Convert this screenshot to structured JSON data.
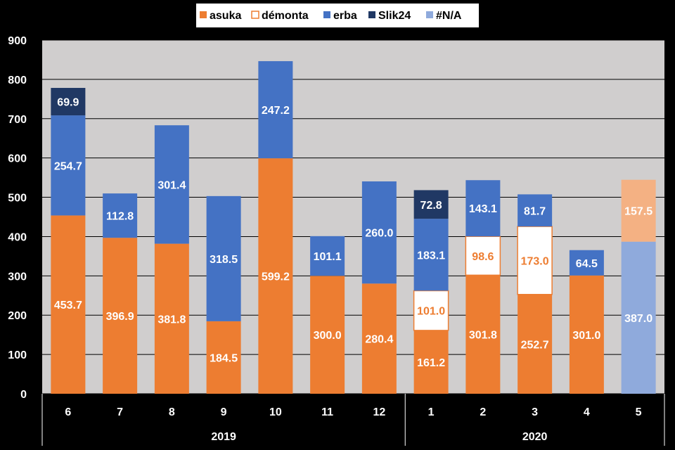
{
  "chart_data": {
    "type": "bar",
    "stacked": true,
    "title": "",
    "xlabel": "",
    "ylabel": "",
    "ylim": [
      0,
      900
    ],
    "yticks": [
      0,
      100,
      200,
      300,
      400,
      500,
      600,
      700,
      800,
      900
    ],
    "grid": true,
    "legend_position": "top-center",
    "categories": [
      "6",
      "7",
      "8",
      "9",
      "10",
      "11",
      "12",
      "1",
      "2",
      "3",
      "4",
      "5"
    ],
    "groups": [
      {
        "label": "2019",
        "categories": [
          "6",
          "7",
          "8",
          "9",
          "10",
          "11",
          "12"
        ]
      },
      {
        "label": "2020",
        "categories": [
          "1",
          "2",
          "3",
          "4",
          "5"
        ]
      }
    ],
    "legend": [
      "asuka",
      "démonta",
      "erba",
      "Slik24",
      "#N/A"
    ],
    "series": [
      {
        "name": "asuka",
        "color": "#ED7D31",
        "values": [
          453.7,
          396.9,
          381.8,
          184.5,
          599.2,
          300.0,
          280.4,
          161.2,
          301.8,
          252.7,
          301.0,
          null
        ],
        "labels": [
          "453.7",
          "396.9",
          "381.8",
          "184.5",
          "599.2",
          "300.0",
          "280.4",
          "161.2",
          "301.8",
          "252.7",
          "301.0",
          null
        ]
      },
      {
        "name": "démonta",
        "color": "#FFFFFF",
        "values": [
          null,
          null,
          null,
          null,
          null,
          null,
          null,
          101.0,
          98.6,
          173.0,
          null,
          null
        ],
        "labels": [
          null,
          null,
          null,
          null,
          null,
          null,
          null,
          "101.0",
          "98.6",
          "173.0",
          null,
          null
        ]
      },
      {
        "name": "erba",
        "color": "#4472C4",
        "values": [
          254.7,
          112.8,
          301.4,
          318.5,
          247.2,
          101.1,
          260.0,
          183.1,
          143.1,
          81.7,
          64.5,
          null
        ],
        "labels": [
          "254.7",
          "112.8",
          "301.4",
          "318.5",
          "247.2",
          "101.1",
          "260.0",
          "183.1",
          "143.1",
          "81.7",
          "64.5",
          null
        ]
      },
      {
        "name": "Slik24",
        "color": "#203864",
        "values": [
          69.9,
          null,
          null,
          null,
          null,
          null,
          null,
          72.8,
          null,
          null,
          null,
          null
        ],
        "labels": [
          "69.9",
          null,
          null,
          null,
          null,
          null,
          null,
          "72.8",
          null,
          null,
          null,
          null
        ]
      },
      {
        "name": "#N/A",
        "color": "#8FAADC",
        "values": [
          null,
          null,
          null,
          null,
          null,
          null,
          null,
          null,
          null,
          null,
          null,
          387.0
        ],
        "labels": [
          null,
          null,
          null,
          null,
          null,
          null,
          null,
          null,
          null,
          null,
          null,
          "387.0"
        ]
      },
      {
        "name": "",
        "color": "#F4B183",
        "values": [
          null,
          null,
          null,
          null,
          null,
          null,
          null,
          null,
          null,
          null,
          null,
          157.5
        ],
        "labels": [
          null,
          null,
          null,
          null,
          null,
          null,
          null,
          null,
          null,
          null,
          null,
          "157.5"
        ]
      }
    ],
    "colors": {
      "plot_background": "#D0CECE",
      "page_background": "#000000",
      "asuka": "#ED7D31",
      "demonta_fill": "#FFFFFF",
      "demonta_border": "#ED7D31",
      "erba": "#4472C4",
      "slik24": "#203864",
      "na": "#8FAADC",
      "asuka_light": "#F4B183"
    }
  }
}
